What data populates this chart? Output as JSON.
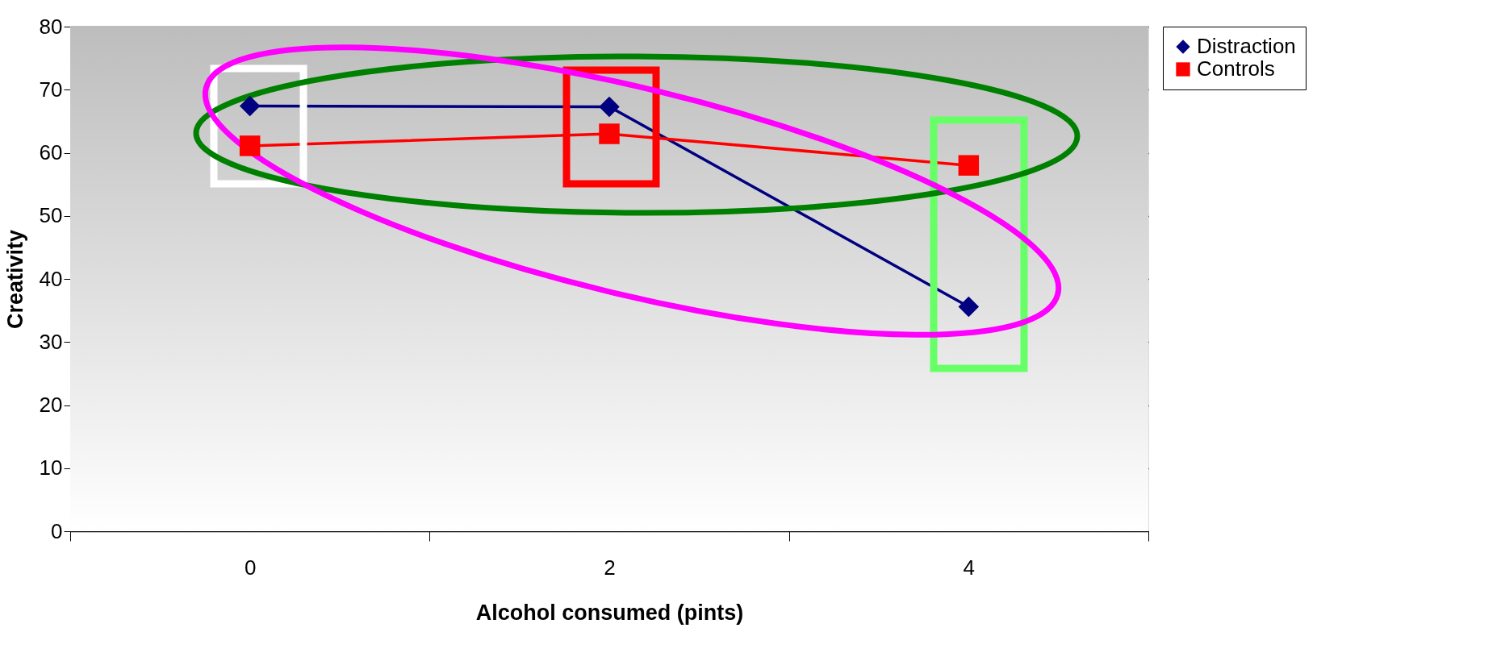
{
  "chart_data": {
    "type": "line",
    "xlabel": "Alcohol consumed (pints)",
    "ylabel": "Creativity",
    "categories": [
      "0",
      "2",
      "4"
    ],
    "series": [
      {
        "name": "Distraction",
        "color": "#000080",
        "marker": "diamond",
        "values": [
          67.4,
          67.3,
          35.6
        ]
      },
      {
        "name": "Controls",
        "color": "#ff0000",
        "marker": "square",
        "values": [
          61.1,
          63.0,
          58.0
        ]
      }
    ],
    "ylim": [
      0,
      80
    ],
    "yticks": [
      0,
      10,
      20,
      30,
      40,
      50,
      60,
      70,
      80
    ],
    "grid": "y",
    "legend": "right",
    "line_style": "solid"
  }
}
